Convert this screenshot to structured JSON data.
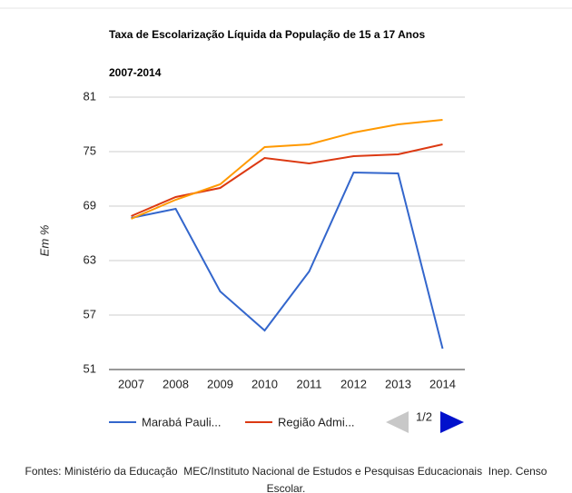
{
  "chart_data": {
    "type": "line",
    "title": "Taxa de Escolarização Líquida da População de 15 a 17 Anos",
    "subtitle": "2007-2014",
    "y_label": "Em %",
    "categories": [
      "2007",
      "2008",
      "2009",
      "2010",
      "2011",
      "2012",
      "2013",
      "2014"
    ],
    "series": [
      {
        "name": "Marabá Pauli...",
        "color": "#3366cc",
        "values": [
          67.7,
          68.7,
          59.6,
          55.3,
          61.8,
          72.7,
          72.6,
          53.3
        ]
      },
      {
        "name": "Região Admi...",
        "color": "#dc3912",
        "values": [
          67.9,
          70.0,
          71.0,
          74.3,
          73.7,
          74.5,
          74.7,
          75.8
        ]
      },
      {
        "color": "#ff9900",
        "values": [
          67.6,
          69.7,
          71.4,
          75.5,
          75.8,
          77.1,
          78.0,
          78.5
        ]
      }
    ],
    "ylim": [
      51,
      81
    ],
    "yticks": [
      51,
      57,
      63,
      69,
      75,
      81
    ],
    "grid": true,
    "legend_page": "1/2",
    "source": "Fontes: Ministério da Educação  MEC/Instituto Nacional de Estudos e Pesquisas Educacionais  Inep. Censo Escolar."
  }
}
